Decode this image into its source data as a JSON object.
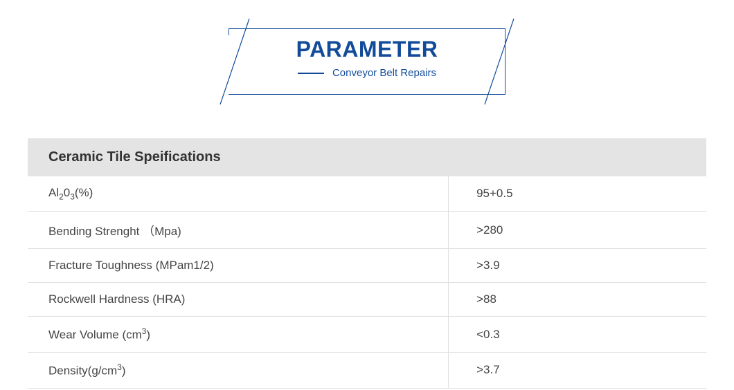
{
  "header": {
    "title": "PARAMETER",
    "subtitle": "Conveyor Belt Repairs",
    "accent_color": "#124b9a"
  },
  "table": {
    "title": "Ceramic Tile Speifications",
    "header_bg": "#e4e4e4",
    "border_color": "#e0e0e0",
    "text_color": "#444444",
    "rows": [
      {
        "label_html": "Al<span class='sub'>2</span>0<span class='sub'>3</span>(%)",
        "label_plain": "Al2O3(%)",
        "value": "95+0.5"
      },
      {
        "label_html": "Bending Strenght （Mpa)",
        "label_plain": "Bending Strenght (Mpa)",
        "value": ">280"
      },
      {
        "label_html": "Fracture Toughness (MPam1/2)",
        "label_plain": "Fracture Toughness (MPam1/2)",
        "value": ">3.9"
      },
      {
        "label_html": "Rockwell Hardness (HRA)",
        "label_plain": "Rockwell Hardness (HRA)",
        "value": ">88"
      },
      {
        "label_html": "Wear Volume (cm<span class='sup'>3</span>)",
        "label_plain": "Wear Volume (cm3)",
        "value": "<0.3"
      },
      {
        "label_html": "Density(g/cm<span class='sup'>3</span>)",
        "label_plain": "Density(g/cm3)",
        "value": ">3.7"
      }
    ]
  }
}
